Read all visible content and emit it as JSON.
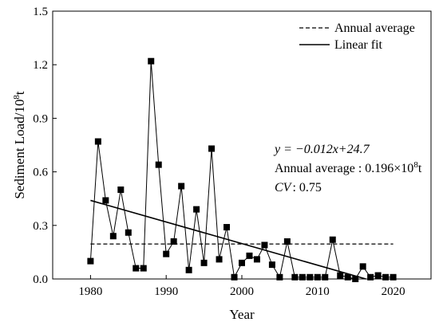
{
  "chart_data": {
    "type": "line",
    "xlabel": "Year",
    "ylabel": "Sediment Load/10",
    "ylabel_sup": "8",
    "ylabel_unit": "t",
    "xlim": [
      1975,
      2025
    ],
    "ylim": [
      0,
      1.5
    ],
    "xticks": [
      1980,
      1990,
      2000,
      2010,
      2020
    ],
    "xtick_labels": [
      "1980",
      "1990",
      "2000",
      "2010",
      "2020"
    ],
    "yticks": [
      0.0,
      0.3,
      0.6,
      0.9,
      1.2,
      1.5
    ],
    "ytick_labels": [
      "0.0",
      "0.3",
      "0.6",
      "0.9",
      "1.2",
      "1.5"
    ],
    "grid": false,
    "legend_position": "top-right",
    "series": [
      {
        "style": "solid line with square markers",
        "color": "#000000",
        "x": [
          1980,
          1981,
          1982,
          1983,
          1984,
          1985,
          1986,
          1987,
          1988,
          1989,
          1990,
          1991,
          1992,
          1993,
          1994,
          1995,
          1996,
          1997,
          1998,
          1999,
          2000,
          2001,
          2002,
          2003,
          2004,
          2005,
          2006,
          2007,
          2008,
          2009,
          2010,
          2011,
          2012,
          2013,
          2014,
          2015,
          2016,
          2017,
          2018,
          2019,
          2020
        ],
        "values": [
          0.1,
          0.77,
          0.44,
          0.24,
          0.5,
          0.26,
          0.06,
          0.06,
          1.22,
          0.64,
          0.14,
          0.21,
          0.52,
          0.05,
          0.39,
          0.09,
          0.73,
          0.11,
          0.29,
          0.01,
          0.09,
          0.13,
          0.11,
          0.19,
          0.08,
          0.01,
          0.21,
          0.01,
          0.01,
          0.01,
          0.01,
          0.01,
          0.22,
          0.02,
          0.01,
          0.0,
          0.07,
          0.01,
          0.02,
          0.01,
          0.01
        ]
      },
      {
        "name": "Annual average",
        "style": "dashed",
        "color": "#000000",
        "x": [
          1980,
          2020
        ],
        "values": [
          0.196,
          0.196
        ]
      },
      {
        "name": "Linear fit",
        "style": "solid",
        "color": "#000000",
        "x": [
          1980,
          2016.4
        ],
        "values": [
          0.44,
          0.0
        ]
      }
    ],
    "annotations": {
      "equation": "y = −0.012x+24.7",
      "average_label": "Annual average : 0.196×10",
      "average_sup": "8",
      "average_unit": "t",
      "cv_label": "CV",
      "cv_value": ": 0.75"
    }
  }
}
